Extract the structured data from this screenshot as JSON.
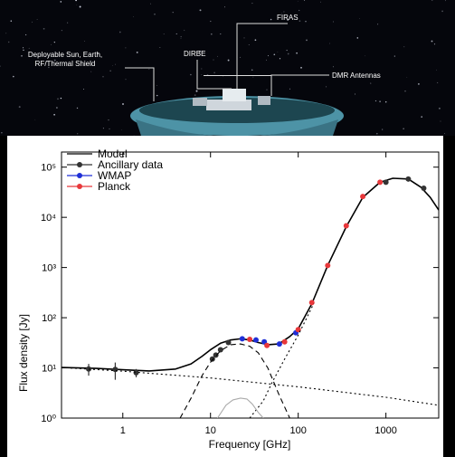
{
  "header": {
    "shield_label": [
      "Deployable Sun, Earth,",
      "RF/Thermal Shield"
    ],
    "dirbe_label": "DIRBE",
    "firas_label": "FIRAS",
    "dmr_label": "DMR Antennas"
  },
  "chart_data": {
    "type": "line",
    "x_label": "Frequency [GHz]",
    "y_label": "Flux density [Jy]",
    "xlim": [
      0.2,
      4000
    ],
    "ylim": [
      1,
      200000
    ],
    "log_x": true,
    "log_y": true,
    "xticks": [
      1,
      10,
      100,
      1000
    ],
    "yticks": [
      {
        "value": 1,
        "label": "10⁰"
      },
      {
        "value": 10,
        "label": "10¹"
      },
      {
        "value": 100,
        "label": "10²"
      },
      {
        "value": 1000,
        "label": "10³"
      },
      {
        "value": 10000,
        "label": "10⁴"
      },
      {
        "value": 100000,
        "label": "10⁵"
      }
    ],
    "legend": "top-left",
    "series": [
      {
        "name": "Model",
        "color": "#000000",
        "style": "solid",
        "x": [
          0.2,
          0.5,
          1,
          2,
          4,
          6,
          8,
          10,
          13,
          17,
          22,
          28,
          35,
          45,
          60,
          80,
          100,
          143,
          217,
          353,
          545,
          857,
          1200,
          1800,
          2500,
          3200,
          4000
        ],
        "values": [
          10.2,
          9.8,
          9.2,
          8.7,
          9.5,
          12,
          17,
          23,
          31,
          36,
          38,
          36,
          32,
          29,
          30,
          42,
          60,
          190,
          1100,
          6500,
          25000,
          50000,
          60000,
          58000,
          40000,
          25000,
          14000
        ]
      },
      {
        "name": "Ancillary data",
        "color": "#333333",
        "style": "points",
        "x": [
          0.408,
          0.82,
          1.42,
          10.5,
          11.5,
          13,
          16,
          1000,
          1800,
          2700
        ],
        "values": [
          9.5,
          9.3,
          8.0,
          15,
          18,
          23,
          32,
          50000,
          58000,
          38000
        ],
        "errors": [
          2.5,
          3.5,
          1.5,
          null,
          null,
          null,
          null,
          null,
          null,
          null
        ]
      },
      {
        "name": "WMAP",
        "color": "#1f2fd6",
        "style": "points",
        "x": [
          23,
          33,
          41,
          61,
          94
        ],
        "values": [
          38,
          36,
          33,
          30,
          50
        ]
      },
      {
        "name": "Planck",
        "color": "#e8383b",
        "style": "points",
        "x": [
          28,
          44,
          70,
          100,
          143,
          217,
          353,
          545,
          857
        ],
        "values": [
          37,
          28,
          33,
          58,
          200,
          1100,
          6800,
          26000,
          50000
        ]
      },
      {
        "color": "#000000",
        "style": "dotted",
        "x": [
          0.2,
          1,
          10,
          100,
          1000,
          4000
        ],
        "values": [
          10.2,
          8.6,
          6.3,
          4.2,
          2.6,
          1.8
        ]
      },
      {
        "color": "#000000",
        "style": "dotted",
        "x": [
          28,
          40,
          50,
          70,
          100,
          150
        ],
        "values": [
          1,
          2.2,
          5,
          15,
          45,
          190
        ]
      },
      {
        "color": "#000000",
        "style": "dashed",
        "x": [
          4.5,
          6,
          8,
          10,
          13,
          17,
          22,
          28,
          35,
          45,
          60,
          80
        ],
        "values": [
          1,
          2.5,
          7,
          13,
          22,
          29,
          30,
          27,
          20,
          10,
          3,
          1
        ]
      },
      {
        "color": "#aaaaaa",
        "style": "solid",
        "x": [
          12,
          15,
          18,
          22,
          26,
          30,
          35,
          40
        ],
        "values": [
          1,
          1.8,
          2.3,
          2.5,
          2.4,
          1.9,
          1.3,
          1
        ]
      }
    ]
  }
}
